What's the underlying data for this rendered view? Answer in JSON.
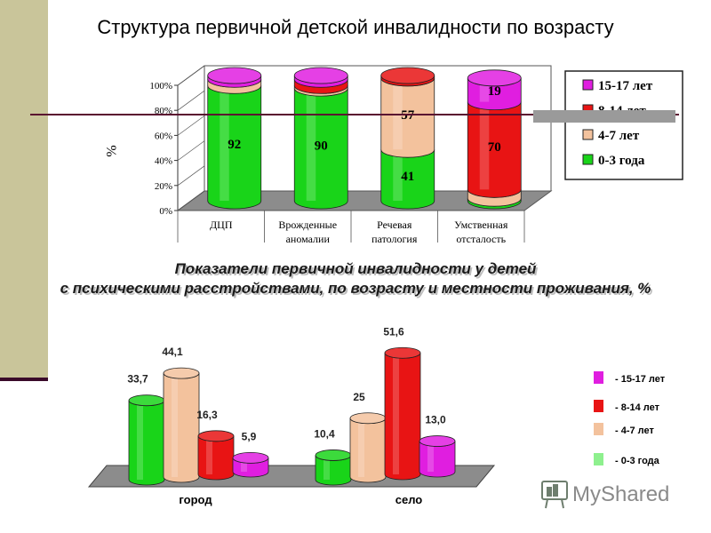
{
  "title": "Структура первичной детской инвалидности по возрасту",
  "subtitle_line1": "Показатели первичной инвалидности у детей",
  "subtitle_line2": "с психическими расстройствами, по возрасту и местности проживания, %",
  "watermark": "MyShared",
  "colors": {
    "age_0_3": "#19d419",
    "age_4_7": "#f3c29d",
    "age_8_14": "#e81414",
    "age_15_17": "#e01ee0",
    "legend_swatch_0_3": "#8ef08e"
  },
  "chart_data": [
    {
      "type": "bar",
      "stacked": true,
      "ylabel": "%",
      "ylim": [
        0,
        100
      ],
      "yticks": [
        "0%",
        "20%",
        "40%",
        "60%",
        "80%",
        "100%"
      ],
      "categories": [
        [
          "ДЦП"
        ],
        [
          "Врожденные",
          "аномалии"
        ],
        [
          "Речевая",
          "патология"
        ],
        [
          "Умственная",
          "отсталость"
        ]
      ],
      "series": [
        {
          "name": "0-3 года",
          "color": "#19d419",
          "values": [
            92,
            90,
            41,
            2
          ],
          "labels": [
            "92",
            "90",
            "41",
            ""
          ]
        },
        {
          "name": "4-7 лет",
          "color": "#f3c29d",
          "values": [
            5,
            2,
            57,
            7
          ],
          "labels": [
            "",
            "",
            "57",
            ""
          ]
        },
        {
          "name": "8-14 лет",
          "color": "#e81414",
          "values": [
            0,
            5,
            2,
            70
          ],
          "labels": [
            "",
            "",
            "",
            "70"
          ]
        },
        {
          "name": "15-17 лет",
          "color": "#e01ee0",
          "values": [
            3,
            3,
            0,
            19
          ],
          "labels": [
            "",
            "",
            "",
            "19"
          ]
        }
      ],
      "legend": [
        "15-17 лет",
        "8-14 лет",
        "4-7 лет",
        "0-3 года"
      ],
      "legend_colors": [
        "#e01ee0",
        "#e81414",
        "#f3c29d",
        "#19d419"
      ],
      "legend_position": "right",
      "grid": false
    },
    {
      "type": "bar",
      "stacked": false,
      "categories": [
        "город",
        "село"
      ],
      "series": [
        {
          "name": "0-3 года",
          "color": "#19d419",
          "values": [
            33.7,
            10.4
          ],
          "labels": [
            "33,7",
            "10,4"
          ]
        },
        {
          "name": "4-7 лет",
          "color": "#f3c29d",
          "values": [
            44.1,
            25
          ],
          "labels": [
            "44,1",
            "25"
          ]
        },
        {
          "name": "8-14 лет",
          "color": "#e81414",
          "values": [
            16.3,
            51.6
          ],
          "labels": [
            "16,3",
            "51,6"
          ]
        },
        {
          "name": "15-17 лет",
          "color": "#e01ee0",
          "values": [
            5.9,
            13.0
          ],
          "labels": [
            "5,9",
            "13,0"
          ]
        }
      ],
      "legend": [
        "- 15-17 лет",
        "- 8-14 лет",
        "-  4-7 лет",
        "- 0-3 года"
      ],
      "legend_colors": [
        "#e01ee0",
        "#e81414",
        "#f3c29d",
        "#8ef08e"
      ],
      "legend_position": "right",
      "grid": false
    }
  ]
}
